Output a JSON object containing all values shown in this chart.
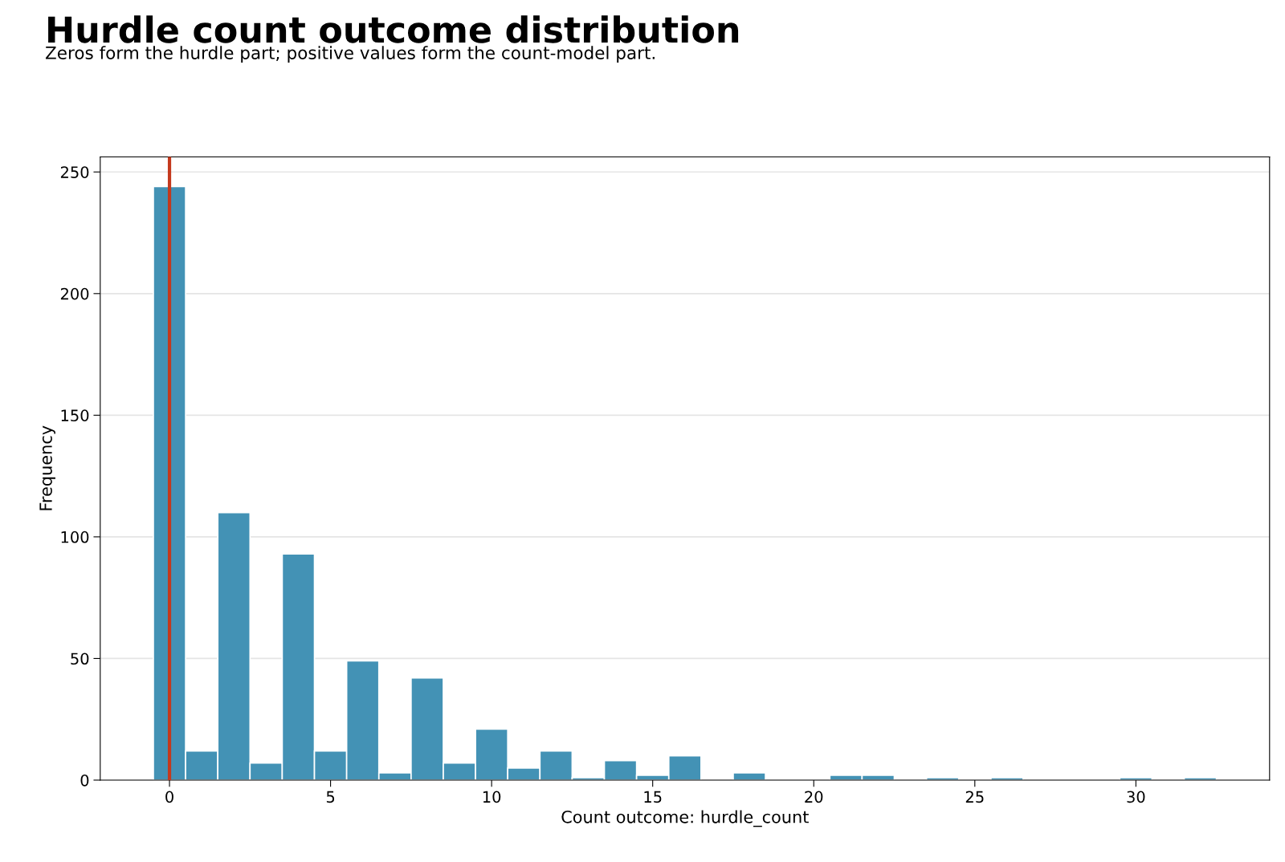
{
  "chart_data": {
    "type": "histogram",
    "title": "Hurdle count outcome distribution",
    "subtitle": "Zeros form the hurdle part; positive values form the count-model part.",
    "xlabel": "Count outcome: hurdle_count",
    "ylabel": "Frequency",
    "bins": [
      -0.5,
      0.5,
      1.5,
      2.5,
      3.5,
      4.5,
      5.5,
      6.5,
      7.5,
      8.5,
      9.5,
      10.5,
      11.5,
      12.5,
      13.5,
      14.5,
      15.5,
      16.5,
      17.5,
      18.5,
      19.5,
      20.5,
      21.5,
      22.5,
      23.5,
      24.5,
      25.5,
      26.5,
      27.5,
      28.5,
      29.5,
      30.5,
      31.5,
      32.5
    ],
    "values": [
      244,
      12,
      110,
      7,
      93,
      12,
      49,
      3,
      42,
      7,
      21,
      5,
      12,
      1,
      8,
      2,
      10,
      0,
      3,
      0,
      0,
      2,
      2,
      0,
      1,
      0,
      1,
      0,
      0,
      0,
      1,
      0,
      1
    ],
    "color": "#4392b5",
    "xlim": [
      -2.15,
      34.15
    ],
    "xticks": [
      0,
      5,
      10,
      15,
      20,
      25,
      30
    ],
    "ylim": [
      0,
      256.2
    ],
    "yticks": [
      0,
      50,
      100,
      150,
      200,
      250
    ],
    "grid": "y",
    "ref_lines": [
      {
        "axis": "x",
        "value": 0,
        "color": "#c4391d",
        "line_style": "solid"
      }
    ]
  }
}
